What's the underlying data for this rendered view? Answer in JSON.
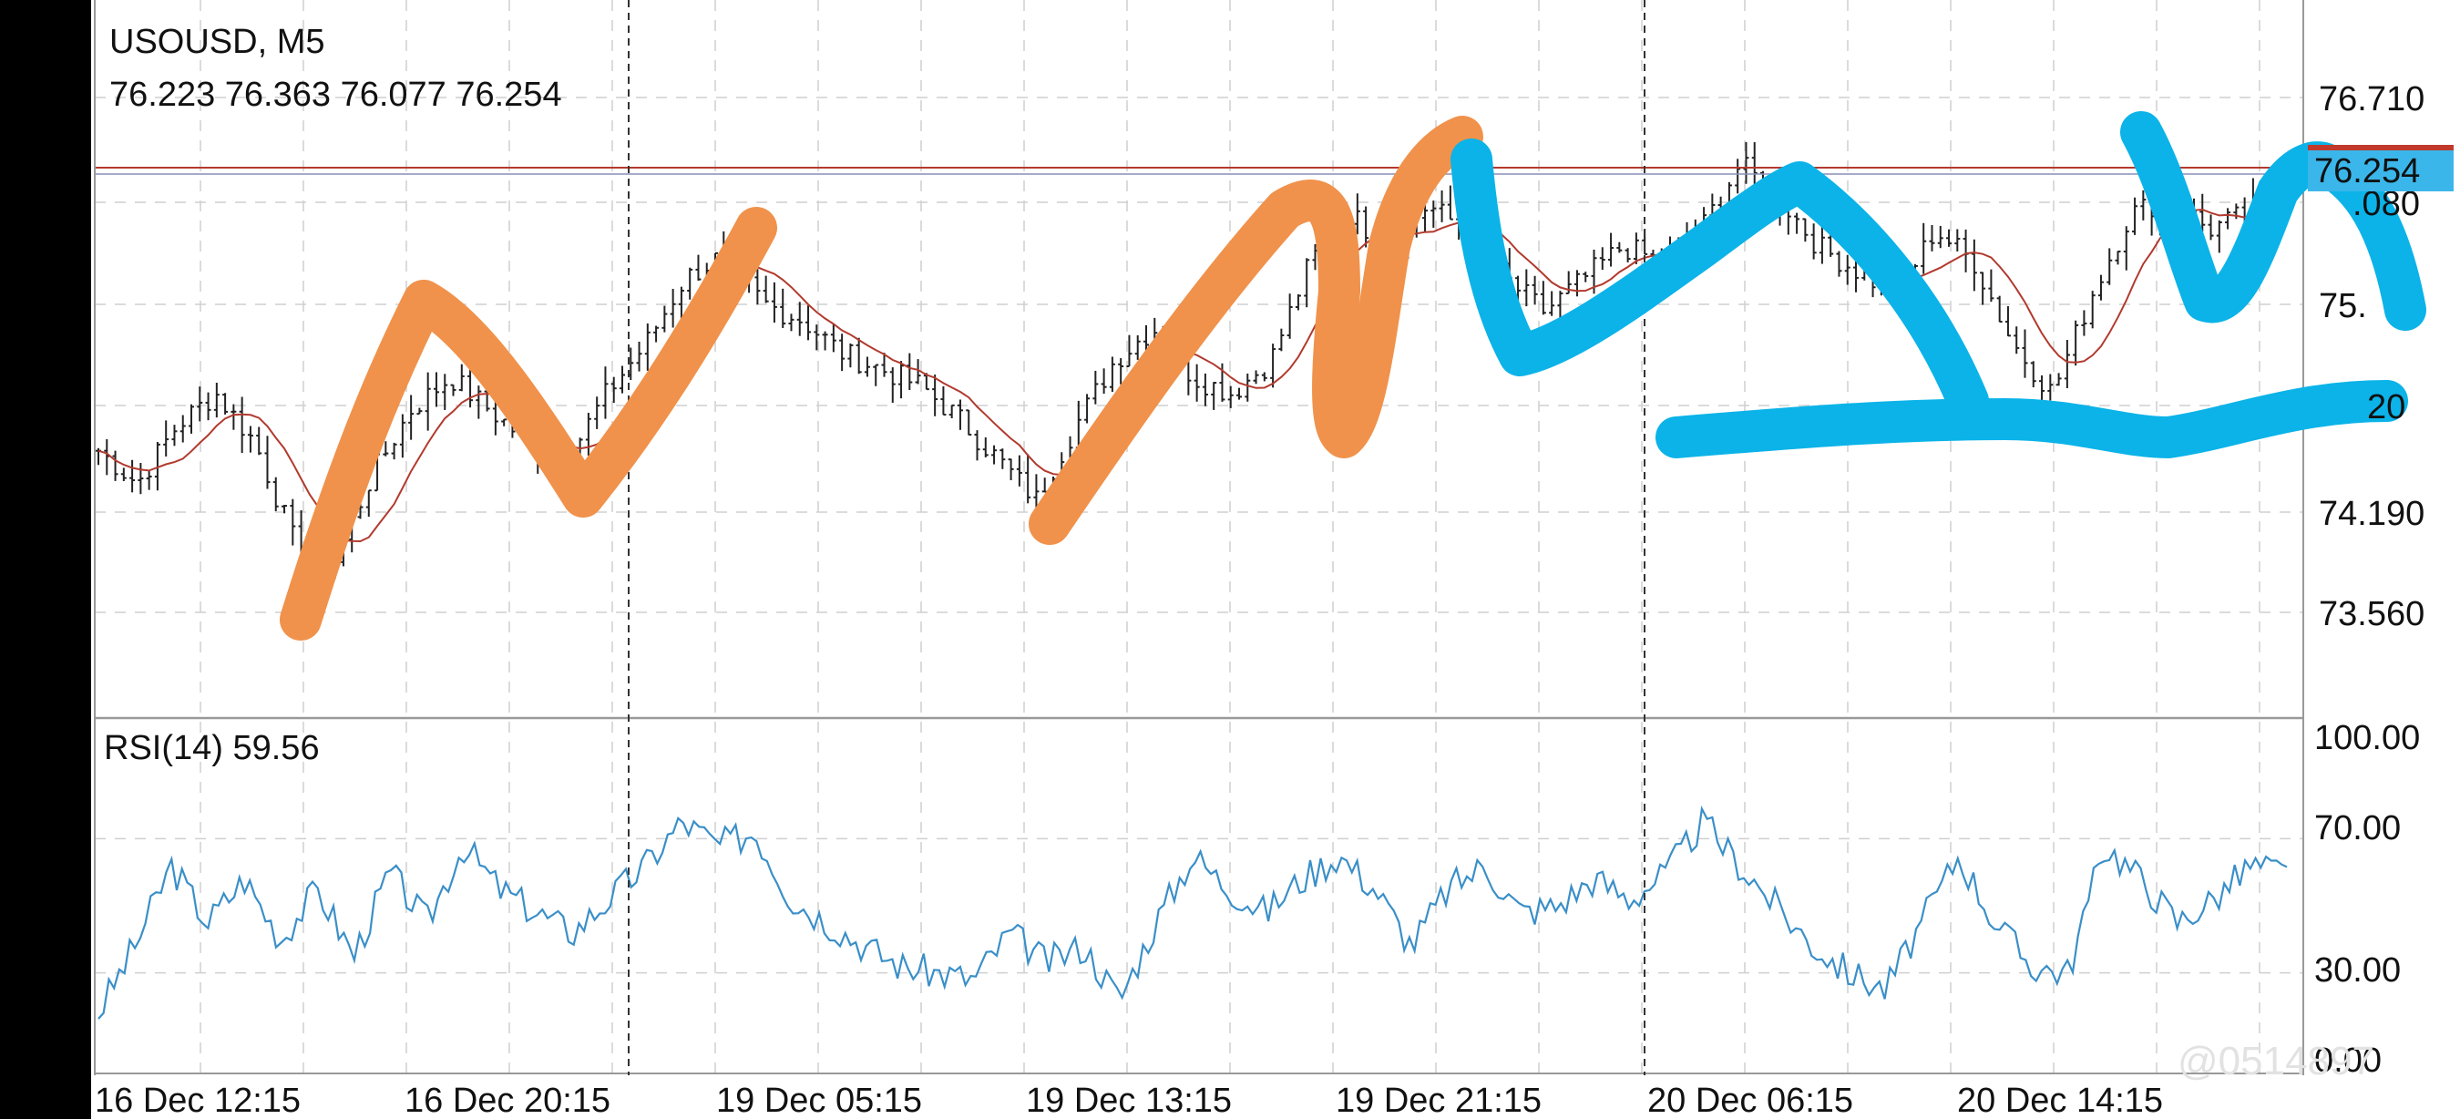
{
  "header": {
    "symbol_timeframe": "USOUSD, M5",
    "ohlc": "76.223 76.363 76.077 76.254"
  },
  "price_axis": {
    "ticks": [
      "76.710",
      "76.080",
      "75.450",
      "74.820",
      "74.190",
      "73.560"
    ],
    "ticks_display": [
      "76.710",
      ".080",
      "75.",
      "20",
      "74.190",
      "73.560"
    ],
    "current_price": "76.254"
  },
  "rsi": {
    "label": "RSI(14) 59.56",
    "ticks": [
      "100.00",
      "70.00",
      "30.00",
      "0.00"
    ]
  },
  "time_axis": {
    "labels": [
      "16 Dec 12:15",
      "16 Dec 20:15",
      "19 Dec 05:15",
      "19 Dec 13:15",
      "19 Dec 21:15",
      "20 Dec 06:15",
      "20 Dec 14:15"
    ]
  },
  "watermark": "@0514897",
  "colors": {
    "candle": "#222222",
    "ma": "#b23a2e",
    "price_line": "#b23a2e",
    "price_label_bg": "#c0392b",
    "rsi_line": "#3a8fc8",
    "orange_annotation": "#f0924b",
    "blue_annotation": "#0bb3e8",
    "grid": "#cfcfcf"
  },
  "chart_data": [
    {
      "type": "candlestick",
      "title": "USOUSD, M5",
      "ylim": [
        73.2,
        76.9
      ],
      "x_labels": [
        "16 Dec 12:15",
        "16 Dec 20:15",
        "19 Dec 05:15",
        "19 Dec 13:15",
        "19 Dec 21:15",
        "20 Dec 06:15",
        "20 Dec 14:15"
      ],
      "last_ohlc": {
        "open": 76.223,
        "high": 76.363,
        "low": 76.077,
        "close": 76.254
      },
      "close_profile": [
        74.55,
        74.35,
        74.7,
        74.9,
        74.6,
        74.0,
        73.85,
        74.4,
        74.8,
        75.0,
        74.8,
        74.6,
        74.5,
        74.9,
        75.2,
        75.6,
        75.75,
        75.45,
        75.35,
        75.15,
        75.05,
        74.95,
        74.75,
        74.5,
        74.25,
        74.7,
        75.1,
        75.3,
        75.0,
        74.9,
        75.1,
        75.7,
        76.0,
        75.8,
        76.05,
        75.9,
        75.6,
        75.4,
        75.6,
        75.8,
        75.7,
        75.9,
        76.3,
        76.1,
        75.8,
        75.65,
        75.5,
        75.9,
        75.7,
        75.2,
        74.9,
        75.5,
        76.0,
        76.1,
        75.9,
        76.0,
        76.25
      ]
    },
    {
      "type": "line",
      "title": "RSI(14) 59.56",
      "ylim": [
        0,
        100
      ],
      "values": [
        18,
        38,
        62,
        45,
        58,
        40,
        55,
        35,
        60,
        45,
        68,
        55,
        48,
        42,
        52,
        62,
        75,
        68,
        72,
        52,
        45,
        38,
        32,
        30,
        28,
        42,
        33,
        38,
        22,
        45,
        65,
        55,
        48,
        58,
        65,
        55,
        38,
        55,
        62,
        48,
        50,
        58,
        52,
        60,
        75,
        62,
        50,
        38,
        30,
        25,
        45,
        65,
        45,
        32,
        30,
        68,
        58,
        45,
        52,
        62,
        59.56
      ]
    }
  ]
}
